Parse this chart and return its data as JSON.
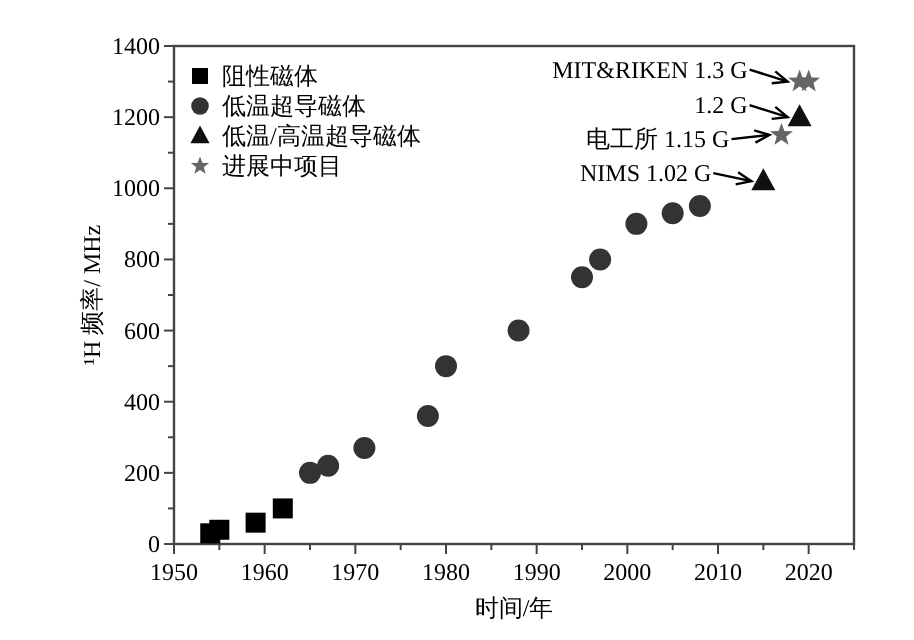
{
  "chart_data": {
    "type": "scatter",
    "xlabel": "时间/年",
    "ylabel": "¹H 频率/ MHz",
    "xlim": [
      1950,
      2025
    ],
    "ylim": [
      0,
      1400
    ],
    "xticks": [
      1950,
      {
        "value": 1955,
        "label": null
      },
      1960,
      {
        "value": 1965,
        "label": null
      },
      1970,
      {
        "value": 1975,
        "label": null
      },
      1980,
      {
        "value": 1985,
        "label": null
      },
      1990,
      {
        "value": 1995,
        "label": null
      },
      2000,
      {
        "value": 2005,
        "label": null
      },
      2010,
      {
        "value": 2015,
        "label": null
      },
      2020,
      {
        "value": 2025,
        "label": null
      }
    ],
    "yticks": [
      0,
      {
        "value": 100,
        "label": null
      },
      200,
      {
        "value": 300,
        "label": null
      },
      400,
      {
        "value": 500,
        "label": null
      },
      600,
      {
        "value": 700,
        "label": null
      },
      800,
      {
        "value": 900,
        "label": null
      },
      1000,
      {
        "value": 1100,
        "label": null
      },
      1200,
      {
        "value": 1300,
        "label": null
      },
      1400
    ],
    "grid": false,
    "legend": "top left",
    "series": [
      {
        "name": "阻性磁体",
        "color": "#000000",
        "marker": "square",
        "x": [
          1954,
          1955,
          1959,
          1962
        ],
        "values": [
          30,
          40,
          60,
          100
        ]
      },
      {
        "name": "低温超导磁体",
        "color": "#333333",
        "marker": "circle",
        "x": [
          1965,
          1967,
          1971,
          1978,
          1980,
          1988,
          1995,
          1997,
          2001,
          2005,
          2008
        ],
        "values": [
          200,
          220,
          270,
          360,
          500,
          600,
          750,
          800,
          900,
          930,
          950
        ]
      },
      {
        "name": "低温/高温超导磁体",
        "color": "#111111",
        "marker": "triangle",
        "x": [
          2015,
          2019
        ],
        "values": [
          1020,
          1200
        ]
      },
      {
        "name": "进展中项目",
        "color": "#666666",
        "marker": "star",
        "x": [
          2017,
          2019,
          2020
        ],
        "values": [
          1150,
          1300,
          1300
        ]
      }
    ],
    "annotations": [
      {
        "text": "MIT&RIKEN 1.3 G",
        "x": 2019,
        "y": 1300
      },
      {
        "text": "1.2 G",
        "x": 2019,
        "y": 1200
      },
      {
        "text": "电工所 1.15 G",
        "x": 2017,
        "y": 1150
      },
      {
        "text": "NIMS 1.02 G",
        "x": 2015,
        "y": 1020
      }
    ]
  }
}
